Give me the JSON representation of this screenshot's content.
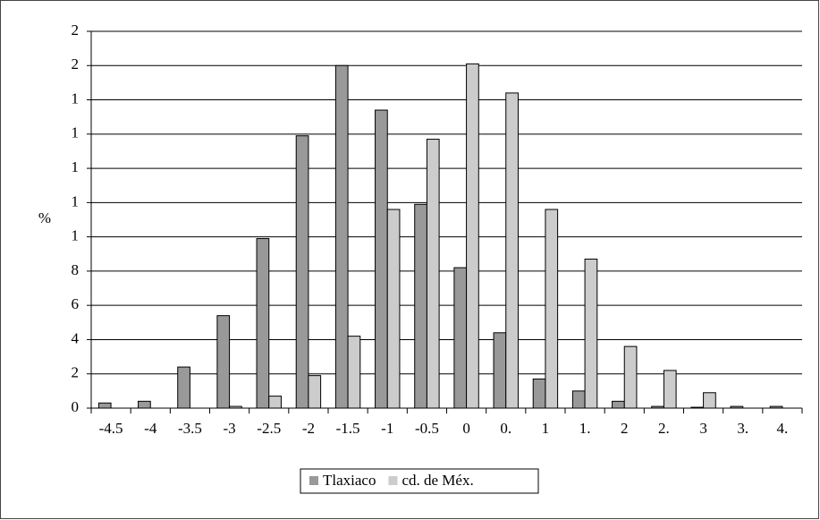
{
  "chart_data": {
    "type": "bar",
    "y_label": "%",
    "categories": [
      "-4.5",
      "-4",
      "-3.5",
      "-3",
      "-2.5",
      "-2",
      "-1.5",
      "-1",
      "-0.5",
      "0",
      "0.",
      "1",
      "1.",
      "2",
      "2.",
      "3",
      "3.",
      "4."
    ],
    "series": [
      {
        "name": "Tlaxiaco",
        "color": "#999999",
        "values": [
          0.3,
          0.4,
          2.4,
          5.4,
          9.9,
          15.9,
          20.0,
          17.4,
          11.9,
          8.2,
          4.4,
          1.7,
          1.0,
          0.4,
          0.1,
          0.05,
          0.1,
          0.1
        ]
      },
      {
        "name": "cd. de Méx.",
        "color": "#cccccc",
        "values": [
          0,
          0,
          0,
          0.1,
          0.7,
          1.9,
          4.2,
          11.6,
          15.7,
          20.1,
          18.4,
          11.6,
          8.7,
          3.6,
          2.2,
          0.9,
          0,
          0
        ]
      }
    ],
    "ylim": [
      0,
      22
    ],
    "yticks": [
      0,
      2,
      4,
      6,
      8,
      {
        "value": 10,
        "label": "1"
      },
      {
        "value": 12,
        "label": "1"
      },
      {
        "value": 14,
        "label": "1"
      },
      {
        "value": 16,
        "label": "1"
      },
      {
        "value": 18,
        "label": "1"
      },
      {
        "value": 20,
        "label": "2"
      },
      {
        "value": 22,
        "label": "2"
      }
    ],
    "grid": true
  }
}
